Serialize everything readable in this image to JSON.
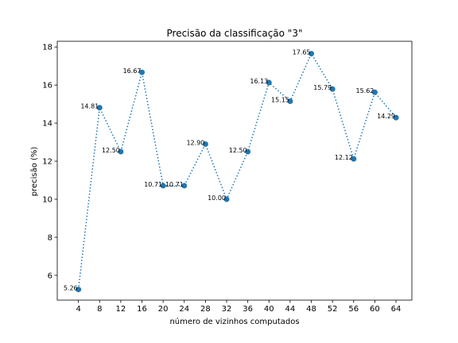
{
  "chart_data": {
    "type": "line",
    "title": "Precisão da classificação \"3\"",
    "xlabel": "número de vizinhos computados",
    "ylabel": "precisão (%)",
    "x": [
      4,
      8,
      12,
      16,
      20,
      24,
      28,
      32,
      36,
      40,
      44,
      48,
      52,
      56,
      60,
      64
    ],
    "y": [
      5.26,
      14.81,
      12.5,
      16.67,
      10.71,
      10.71,
      12.9,
      10.0,
      12.5,
      16.13,
      15.15,
      17.65,
      15.79,
      12.12,
      15.62,
      14.29
    ],
    "data_labels": [
      "5.26",
      "14.81",
      "12.50",
      "16.67",
      "10.71",
      "10.71",
      "12.90",
      "10.00",
      "12.50",
      "16.13",
      "15.15",
      "17.65",
      "15.79",
      "12.12",
      "15.62",
      "14.29"
    ],
    "xticks": [
      "4",
      "8",
      "12",
      "16",
      "20",
      "24",
      "28",
      "32",
      "36",
      "40",
      "44",
      "48",
      "52",
      "56",
      "60",
      "64"
    ],
    "yticks": [
      "6",
      "8",
      "10",
      "12",
      "14",
      "16",
      "18"
    ],
    "xlim": [
      0.0,
      67.0
    ],
    "ylim": [
      4.7,
      18.3
    ],
    "line_style": "dotted",
    "marker": "circle",
    "color": "#1f77b4",
    "grid": false
  }
}
